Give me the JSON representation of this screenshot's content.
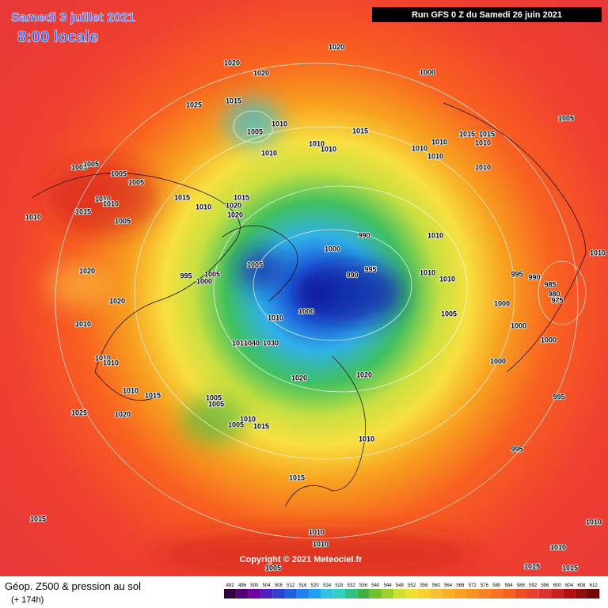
{
  "header": {
    "date": "Samedi 3 juillet 2021",
    "time": "8:00 locale",
    "run": "Run GFS 0 Z du Samedi 26 juin 2021"
  },
  "copyright": "Copyright © 2021 Meteociel.fr",
  "footer": {
    "title": "Géop. Z500 & pression au sol",
    "lead": "(+ 174h)"
  },
  "colorbar": [
    492,
    496,
    500,
    504,
    508,
    512,
    516,
    520,
    524,
    528,
    532,
    536,
    540,
    544,
    548,
    552,
    556,
    560,
    564,
    568,
    572,
    576,
    580,
    584,
    588,
    592,
    596,
    600,
    604,
    608,
    612
  ],
  "isobar_labels": [
    1020,
    1020,
    1020,
    1000,
    1025,
    1015,
    1010,
    1005,
    1015,
    1005,
    1010,
    1010,
    1010,
    1010,
    1010,
    1015,
    1015,
    1010,
    1010,
    1010,
    1005,
    1005,
    1005,
    1005,
    1015,
    1015,
    1010,
    1020,
    1020,
    1010,
    1010,
    1010,
    1015,
    1005,
    990,
    1000,
    1010,
    1005,
    995,
    1005,
    1000,
    990,
    995,
    1010,
    1010,
    995,
    990,
    985,
    980,
    975,
    1020,
    1020,
    1010,
    1000,
    1005,
    1000,
    1010,
    1000,
    1010,
    1040,
    1030,
    1000,
    1000,
    1010,
    1010,
    1020,
    1020,
    1010,
    1015,
    995,
    1005,
    1005,
    1025,
    1020,
    1010,
    1005,
    1015,
    1010,
    995,
    1015,
    1015,
    1010,
    1010,
    1010,
    1010,
    1005,
    1015,
    1015,
    1010
  ]
}
